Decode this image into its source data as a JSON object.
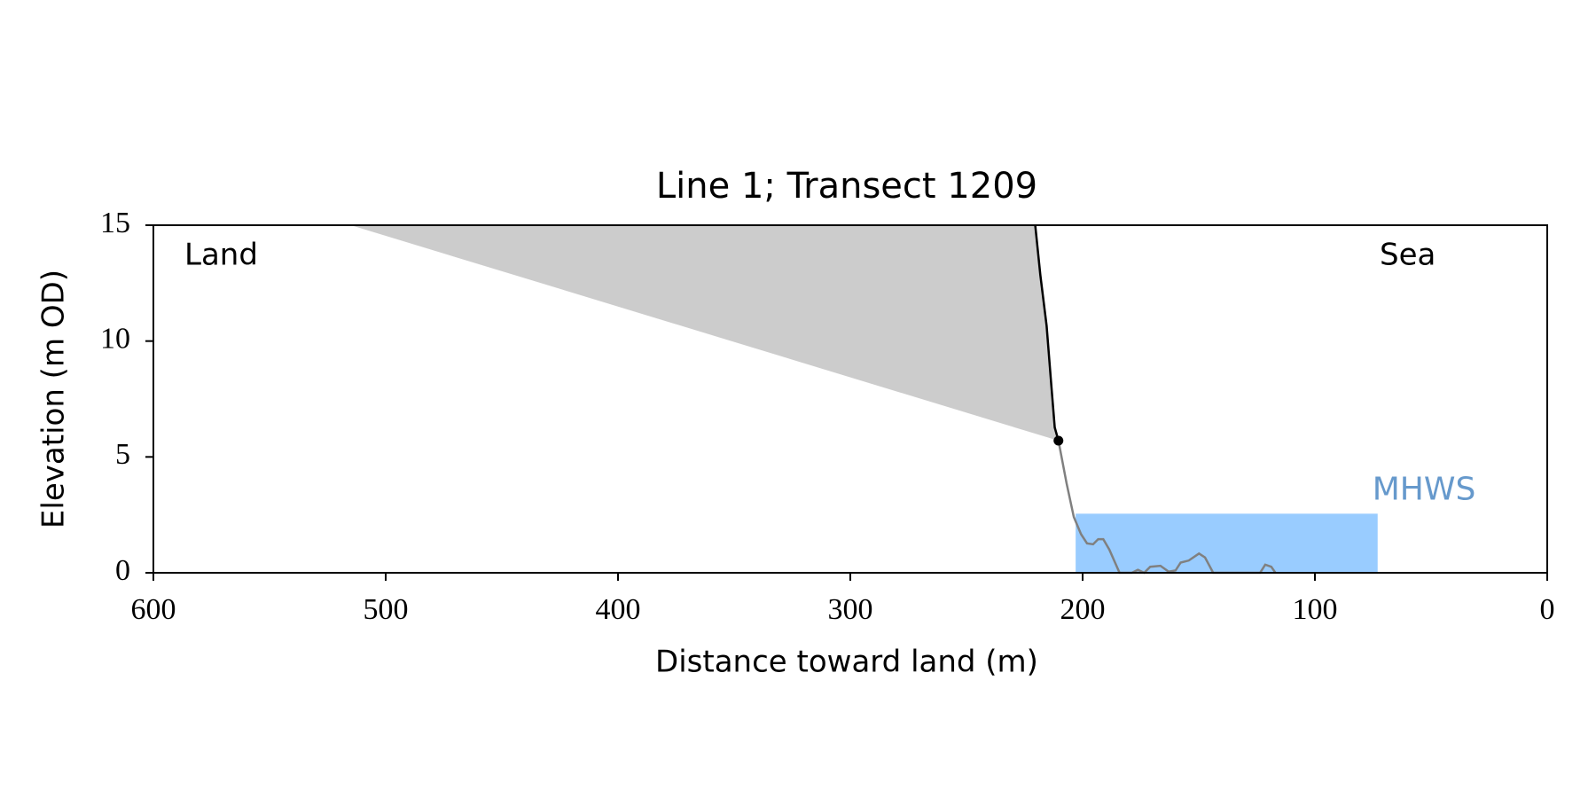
{
  "chart_data": {
    "type": "line",
    "title": "Line 1; Transect 1209",
    "xlabel": "Distance toward land (m)",
    "ylabel": "Elevation (m OD)",
    "xlim": [
      600,
      0
    ],
    "ylim": [
      0,
      15
    ],
    "xticks": [
      600,
      500,
      400,
      300,
      200,
      100,
      0
    ],
    "yticks": [
      0,
      5,
      10,
      15
    ],
    "annotations": [
      "Land",
      "Sea"
    ],
    "shade": {
      "color": "#cccccc",
      "x": [
        515,
        220.4,
        218.2,
        215.5,
        213.4,
        212,
        210.4
      ],
      "y": [
        15,
        15,
        12.85,
        10.66,
        8.0,
        6.27,
        5.7
      ]
    },
    "cliff": {
      "color": "#000000",
      "x": [
        220.4,
        218.2,
        215.5,
        213.4,
        212,
        210.4
      ],
      "y": [
        15,
        12.85,
        10.66,
        8.0,
        6.27,
        5.7
      ]
    },
    "point": {
      "x": 210.4,
      "y": 5.7,
      "color": "#000000"
    },
    "profile": {
      "color": "#808080",
      "x": [
        210.4,
        206.9,
        203.8,
        200.7,
        198.1,
        195.5,
        193.3,
        191.1,
        188.5,
        184.1,
        178.8,
        176.2,
        173.5,
        170.9,
        166.5,
        163,
        160,
        157.8,
        154.3,
        149.9,
        147.3,
        143.8,
        123.6,
        121.4,
        118.8,
        117
      ],
      "y": [
        5.7,
        3.86,
        2.41,
        1.67,
        1.27,
        1.23,
        1.45,
        1.45,
        1.0,
        0,
        0,
        0.13,
        0,
        0.26,
        0.3,
        0.05,
        0.1,
        0.44,
        0.53,
        0.83,
        0.66,
        0,
        0,
        0.35,
        0.26,
        0
      ]
    },
    "mhws": {
      "label": "MHWS",
      "value": 2.55,
      "x": [
        203,
        73
      ],
      "color": "#99ccff",
      "label_color": "#6699cc"
    }
  }
}
